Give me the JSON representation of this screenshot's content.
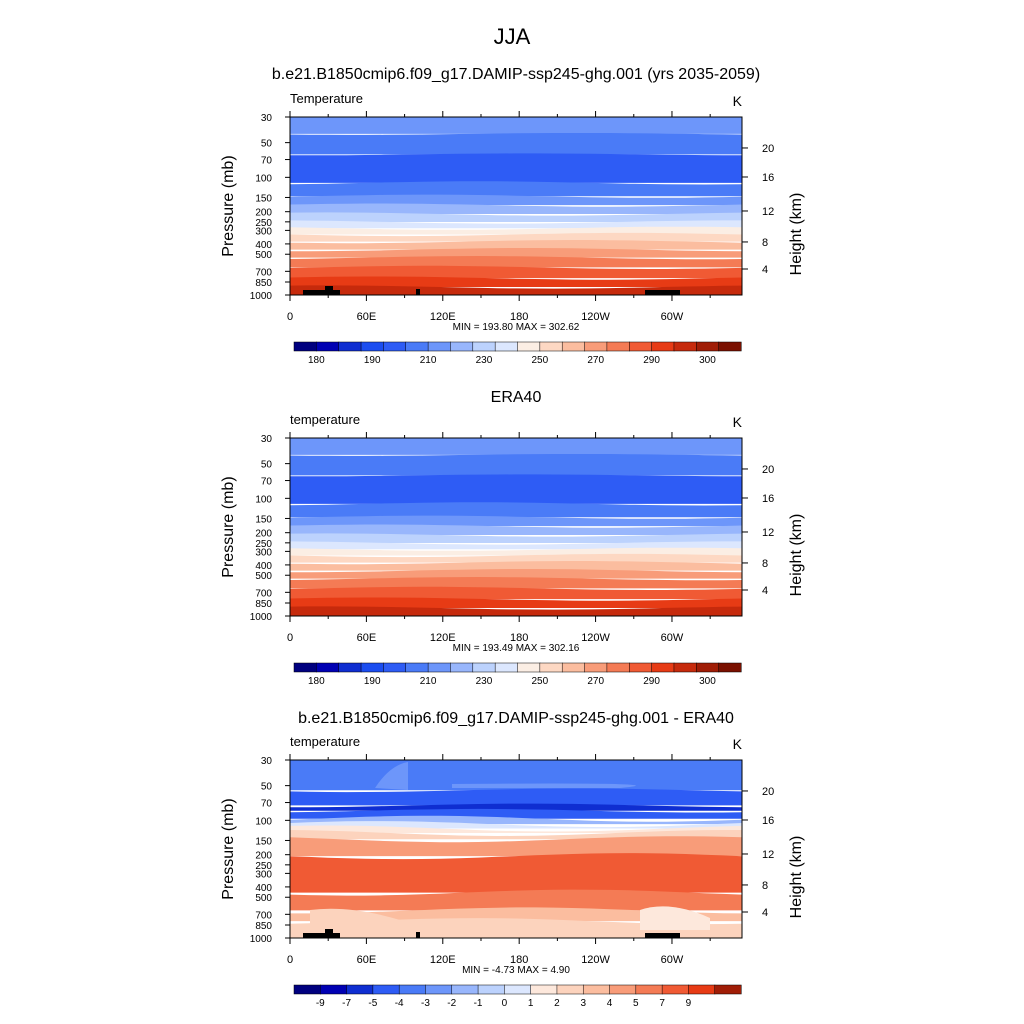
{
  "figure": {
    "title": "JJA"
  },
  "colors": {
    "temp_levels": [
      "#00007f",
      "#0000b3",
      "#0f2ed1",
      "#1b4df0",
      "#2e5cf5",
      "#4a7bf7",
      "#6d96fa",
      "#98b6fc",
      "#bcd2fd",
      "#dce7fe",
      "#fbeee4",
      "#fdd8c3",
      "#fbbd9f",
      "#f89c79",
      "#f47b55",
      "#f05a34",
      "#e73b15",
      "#c62a0c",
      "#a01d06",
      "#7a1000"
    ],
    "diff_levels": [
      "#00007f",
      "#0000b3",
      "#0f2ed1",
      "#2e5cf5",
      "#4a7bf7",
      "#6d96fa",
      "#98b6fc",
      "#bcd2fd",
      "#dce7fe",
      "#fde8dc",
      "#fcd3bd",
      "#fbbd9f",
      "#f89c79",
      "#f47b55",
      "#f05a34",
      "#e73b15",
      "#a01d06"
    ],
    "land": "#000000"
  },
  "chart_data": [
    {
      "type": "contour",
      "title": "b.e21.B1850cmip6.f09_g17.DAMIP-ssp245-ghg.001 (yrs 2035-2059)",
      "left_label": "Temperature",
      "units": "K",
      "ylabel": "Pressure (mb)",
      "ylabel_right": "Height (km)",
      "x_ticks": [
        "0",
        "60E",
        "120E",
        "180",
        "120W",
        "60W"
      ],
      "x_range": [
        0,
        355
      ],
      "pressure_ticks": [
        "30",
        "50",
        "70",
        "100",
        "150",
        "200",
        "250",
        "300",
        "400",
        "500",
        "700",
        "850",
        "1000"
      ],
      "height_ticks": [
        "20",
        "16",
        "12",
        "8",
        "4"
      ],
      "stats": "MIN = 193.80  MAX = 302.62",
      "colorbar_labels": [
        "180",
        "190",
        "210",
        "230",
        "250",
        "270",
        "290",
        "300"
      ],
      "min": 193.8,
      "max": 302.62
    },
    {
      "type": "contour",
      "title": "ERA40",
      "left_label": "temperature",
      "units": "K",
      "ylabel": "Pressure (mb)",
      "ylabel_right": "Height (km)",
      "x_ticks": [
        "0",
        "60E",
        "120E",
        "180",
        "120W",
        "60W"
      ],
      "x_range": [
        0,
        355
      ],
      "pressure_ticks": [
        "30",
        "50",
        "70",
        "100",
        "150",
        "200",
        "250",
        "300",
        "400",
        "500",
        "700",
        "850",
        "1000"
      ],
      "height_ticks": [
        "20",
        "16",
        "12",
        "8",
        "4"
      ],
      "stats": "MIN = 193.49  MAX = 302.16",
      "colorbar_labels": [
        "180",
        "190",
        "210",
        "230",
        "250",
        "270",
        "290",
        "300"
      ],
      "min": 193.49,
      "max": 302.16
    },
    {
      "type": "contour",
      "title": "b.e21.B1850cmip6.f09_g17.DAMIP-ssp245-ghg.001 - ERA40",
      "left_label": "temperature",
      "units": "K",
      "ylabel": "Pressure (mb)",
      "ylabel_right": "Height (km)",
      "x_ticks": [
        "0",
        "60E",
        "120E",
        "180",
        "120W",
        "60W"
      ],
      "x_range": [
        0,
        355
      ],
      "pressure_ticks": [
        "30",
        "50",
        "70",
        "100",
        "150",
        "200",
        "250",
        "300",
        "400",
        "500",
        "700",
        "850",
        "1000"
      ],
      "height_ticks": [
        "20",
        "16",
        "12",
        "8",
        "4"
      ],
      "stats": "MIN = -4.73  MAX =  4.90",
      "colorbar_labels": [
        "-9",
        "-7",
        "-5",
        "-4",
        "-3",
        "-2",
        "-1",
        "0",
        "1",
        "2",
        "3",
        "4",
        "5",
        "7",
        "9"
      ],
      "min": -4.73,
      "max": 4.9
    }
  ]
}
